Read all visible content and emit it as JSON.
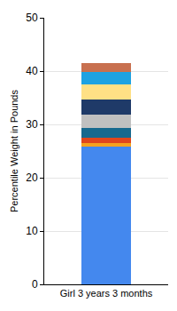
{
  "chart_data": {
    "type": "bar",
    "stacked": true,
    "grid": true,
    "y_label": "Percentile Weight in Pounds",
    "categories": [
      "Girl 3 years 3 months"
    ],
    "series": [
      {
        "color": "#4488ee",
        "values": [
          25.8
        ]
      },
      {
        "color": "#f5a21e",
        "values": [
          0.7
        ]
      },
      {
        "color": "#e0461c",
        "values": [
          1.0
        ]
      },
      {
        "color": "#17698e",
        "values": [
          1.8
        ]
      },
      {
        "color": "#c0c0c0",
        "values": [
          2.5
        ]
      },
      {
        "color": "#1f3a68",
        "values": [
          2.9
        ]
      },
      {
        "color": "#ffe085",
        "values": [
          2.8
        ]
      },
      {
        "color": "#1ea2e2",
        "values": [
          2.3
        ]
      },
      {
        "color": "#c8704f",
        "values": [
          1.7
        ]
      }
    ],
    "ylim": [
      0,
      50
    ],
    "yticks": [
      0,
      10,
      20,
      30,
      40,
      50
    ]
  }
}
